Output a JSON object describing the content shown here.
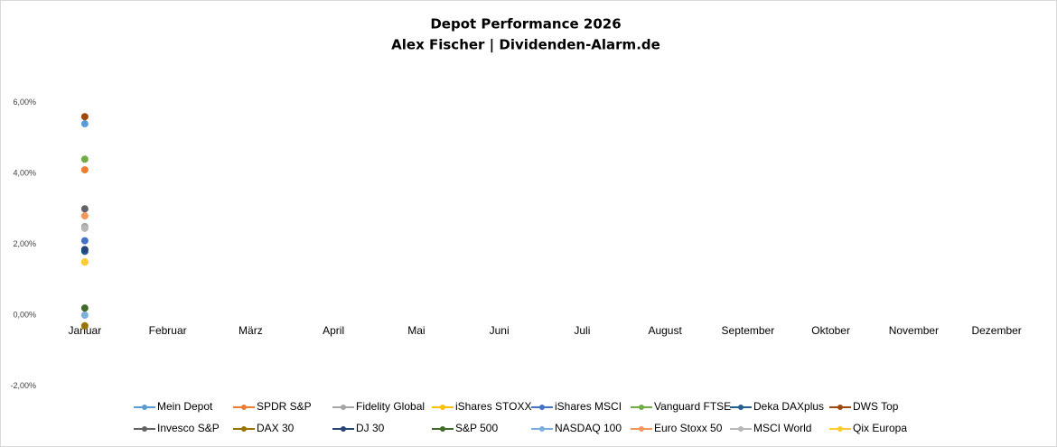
{
  "chart_data": {
    "type": "line",
    "title": "Depot Performance 2026",
    "subtitle": "Alex Fischer | Dividenden-Alarm.de",
    "categories": [
      "Januar",
      "Februar",
      "März",
      "April",
      "Mai",
      "Juni",
      "Juli",
      "August",
      "September",
      "Oktober",
      "November",
      "Dezember"
    ],
    "ylim": [
      -2,
      6
    ],
    "yticks": [
      {
        "value": -2,
        "label": "-2,00%"
      },
      {
        "value": 0,
        "label": "0,00%"
      },
      {
        "value": 2,
        "label": "2,00%"
      },
      {
        "value": 4,
        "label": "4,00%"
      },
      {
        "value": 6,
        "label": "6,00%"
      }
    ],
    "grid": false,
    "legend": "bottom",
    "series": [
      {
        "name": "Mein Depot",
        "color": "#5b9bd5",
        "values": [
          5.4,
          null,
          null,
          null,
          null,
          null,
          null,
          null,
          null,
          null,
          null,
          null
        ]
      },
      {
        "name": "SPDR S&P",
        "color": "#ed7d31",
        "values": [
          4.1,
          null,
          null,
          null,
          null,
          null,
          null,
          null,
          null,
          null,
          null,
          null
        ]
      },
      {
        "name": "Fidelity Global",
        "color": "#a5a5a5",
        "values": [
          2.5,
          null,
          null,
          null,
          null,
          null,
          null,
          null,
          null,
          null,
          null,
          null
        ]
      },
      {
        "name": "iShares STOXX",
        "color": "#ffc000",
        "values": [
          1.5,
          null,
          null,
          null,
          null,
          null,
          null,
          null,
          null,
          null,
          null,
          null
        ]
      },
      {
        "name": "iShares MSCI",
        "color": "#4472c4",
        "values": [
          2.1,
          null,
          null,
          null,
          null,
          null,
          null,
          null,
          null,
          null,
          null,
          null
        ]
      },
      {
        "name": "Vanguard FTSE",
        "color": "#70ad47",
        "values": [
          4.4,
          null,
          null,
          null,
          null,
          null,
          null,
          null,
          null,
          null,
          null,
          null
        ]
      },
      {
        "name": "Deka DAXplus",
        "color": "#255e91",
        "values": [
          1.8,
          null,
          null,
          null,
          null,
          null,
          null,
          null,
          null,
          null,
          null,
          null
        ]
      },
      {
        "name": "DWS Top",
        "color": "#9e480e",
        "values": [
          5.6,
          null,
          null,
          null,
          null,
          null,
          null,
          null,
          null,
          null,
          null,
          null
        ]
      },
      {
        "name": "Invesco S&P",
        "color": "#636363",
        "values": [
          3.0,
          null,
          null,
          null,
          null,
          null,
          null,
          null,
          null,
          null,
          null,
          null
        ]
      },
      {
        "name": "DAX 30",
        "color": "#997300",
        "values": [
          -0.3,
          null,
          null,
          null,
          null,
          null,
          null,
          null,
          null,
          null,
          null,
          null
        ]
      },
      {
        "name": "DJ 30",
        "color": "#264478",
        "values": [
          1.85,
          null,
          null,
          null,
          null,
          null,
          null,
          null,
          null,
          null,
          null,
          null
        ]
      },
      {
        "name": "S&P 500",
        "color": "#43682b",
        "values": [
          0.2,
          null,
          null,
          null,
          null,
          null,
          null,
          null,
          null,
          null,
          null,
          null
        ]
      },
      {
        "name": "NASDAQ 100",
        "color": "#7cafdd",
        "values": [
          0.0,
          null,
          null,
          null,
          null,
          null,
          null,
          null,
          null,
          null,
          null,
          null
        ]
      },
      {
        "name": "Euro Stoxx 50",
        "color": "#f1975a",
        "values": [
          2.8,
          null,
          null,
          null,
          null,
          null,
          null,
          null,
          null,
          null,
          null,
          null
        ]
      },
      {
        "name": "MSCI World",
        "color": "#b7b7b7",
        "values": [
          2.45,
          null,
          null,
          null,
          null,
          null,
          null,
          null,
          null,
          null,
          null,
          null
        ]
      },
      {
        "name": "Qix Europa",
        "color": "#ffcd33",
        "values": [
          1.5,
          null,
          null,
          null,
          null,
          null,
          null,
          null,
          null,
          null,
          null,
          null
        ]
      }
    ]
  }
}
